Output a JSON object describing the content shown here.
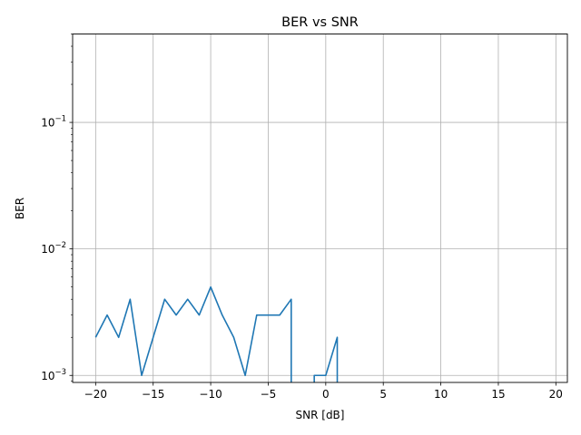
{
  "chart_data": {
    "type": "line",
    "title": "BER vs SNR",
    "xlabel": "SNR [dB]",
    "ylabel": "BER",
    "xlim": [
      -22,
      21
    ],
    "ylim": [
      0.00088,
      0.5
    ],
    "yscale": "log",
    "grid": true,
    "x_ticks": [
      -20,
      -15,
      -10,
      -5,
      0,
      5,
      10,
      15,
      20
    ],
    "x_tick_labels": [
      "−20",
      "−15",
      "−10",
      "−5",
      "0",
      "5",
      "10",
      "15",
      "20"
    ],
    "y_ticks": [
      0.001,
      0.01,
      0.1
    ],
    "y_tick_labels": [
      {
        "base": "10",
        "exp": "−3"
      },
      {
        "base": "10",
        "exp": "−2"
      },
      {
        "base": "10",
        "exp": "−1"
      }
    ],
    "series": [
      {
        "color": "#1f77b4",
        "x": [
          -20,
          -19,
          -18,
          -17,
          -16,
          -15,
          -14,
          -13,
          -12,
          -11,
          -10,
          -9,
          -8,
          -7,
          -6,
          -5,
          -4,
          -3,
          -2,
          -1,
          0,
          1,
          2,
          3,
          4,
          5,
          6,
          7,
          8,
          9,
          10,
          11,
          12,
          13,
          14,
          15,
          16,
          17,
          18,
          19,
          20
        ],
        "y": [
          0.002,
          0.003,
          0.002,
          0.004,
          0.001,
          0.002,
          0.004,
          0.003,
          0.004,
          0.003,
          0.005,
          0.003,
          0.002,
          0.001,
          0.003,
          0.003,
          0.003,
          0.004,
          0,
          0.001,
          0.001,
          0.002,
          0,
          0,
          0,
          0,
          0,
          0,
          0,
          0,
          0,
          0,
          0,
          0,
          0,
          0,
          0,
          0,
          0,
          0,
          0
        ]
      }
    ]
  }
}
